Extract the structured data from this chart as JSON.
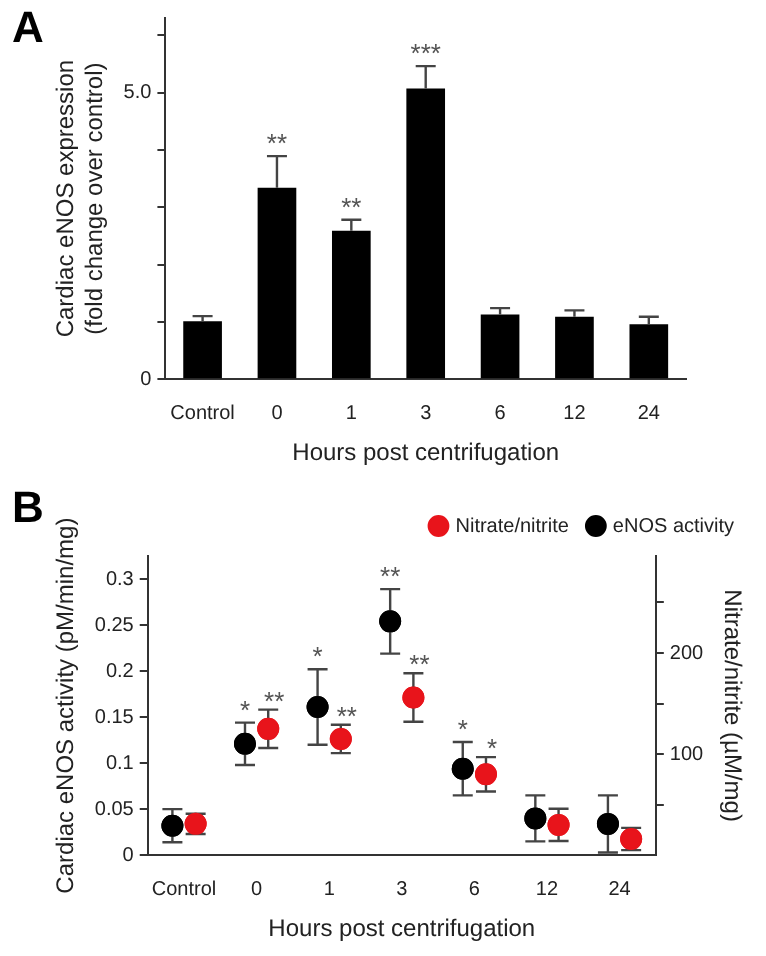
{
  "chart_data": [
    {
      "type": "bar",
      "title": "A",
      "xlabel": "Hours post centrifugation",
      "ylabel": "Cardiac eNOS expression\n(fold change over control)",
      "categories": [
        "Control",
        "0",
        "1",
        "3",
        "6",
        "12",
        "24"
      ],
      "series": [
        {
          "color": "#000000",
          "values": [
            1.01,
            3.34,
            2.59,
            5.07,
            1.13,
            1.09,
            0.96
          ],
          "errors": [
            [
              1.01,
              1.1
            ],
            [
              3.34,
              3.89
            ],
            [
              2.59,
              2.78
            ],
            [
              5.07,
              5.46
            ],
            [
              1.13,
              1.24
            ],
            [
              1.09,
              1.2
            ],
            [
              0.96,
              1.09
            ]
          ]
        }
      ],
      "ylim": [
        0,
        6.3
      ],
      "yticks": [
        0,
        {
          "value": 1,
          "label": null
        },
        {
          "value": 2,
          "label": null
        },
        {
          "value": 3,
          "label": null
        },
        {
          "value": 4,
          "label": null
        },
        {
          "value": 5,
          "label": "5.0"
        },
        {
          "value": 6,
          "label": null
        }
      ],
      "grid": false,
      "annotations": [
        {
          "text": "**",
          "x": "0",
          "y": 3.89
        },
        {
          "text": "**",
          "x": "1",
          "y": 2.78
        },
        {
          "text": "***",
          "x": "3",
          "y": 5.46
        }
      ]
    },
    {
      "type": "scatter",
      "title": "B",
      "xlabel": "Hours post centrifugation",
      "ylabel": "Cardiac eNOS activity (pM/min/mg)",
      "y2label": "Nitrate/nitrite (µM/mg)",
      "categories": [
        "Control",
        "0",
        "1",
        "3",
        "6",
        "12",
        "24"
      ],
      "series": [
        {
          "name": "Nitrate/nitrite",
          "color": "#e8141b",
          "axis": "y2",
          "values": [
            31,
            125,
            115,
            156,
            80,
            30,
            16
          ],
          "errors": [
            10,
            19,
            14,
            24,
            17,
            16,
            11
          ]
        },
        {
          "name": "eNOS activity",
          "color": "#000000",
          "values": [
            0.032,
            0.121,
            0.161,
            0.254,
            0.094,
            0.04,
            0.034
          ],
          "errors": [
            0.018,
            0.023,
            0.041,
            0.035,
            0.029,
            0.025,
            0.031
          ]
        }
      ],
      "ylim": [
        0,
        0.325
      ],
      "yticks": [
        0,
        0.05,
        0.1,
        0.15,
        0.2,
        0.25,
        0.3
      ],
      "y2lim": [
        0,
        296
      ],
      "y2ticks": [
        {
          "value": 50,
          "label": null
        },
        100,
        {
          "value": 150,
          "label": null
        },
        200,
        {
          "value": 250,
          "label": null
        }
      ],
      "marker": "circle",
      "legend": "top right",
      "grid": false,
      "annotations": [
        {
          "text": "*",
          "x": "0",
          "y": 0.144
        },
        "**",
        {
          "text": "*",
          "x": "1",
          "y": 0.202
        },
        "**",
        {
          "text": "**",
          "x": "3",
          "y": 0.289
        },
        "**",
        {
          "text": "*",
          "x": "6",
          "y": 0.123
        },
        "*"
      ]
    }
  ]
}
